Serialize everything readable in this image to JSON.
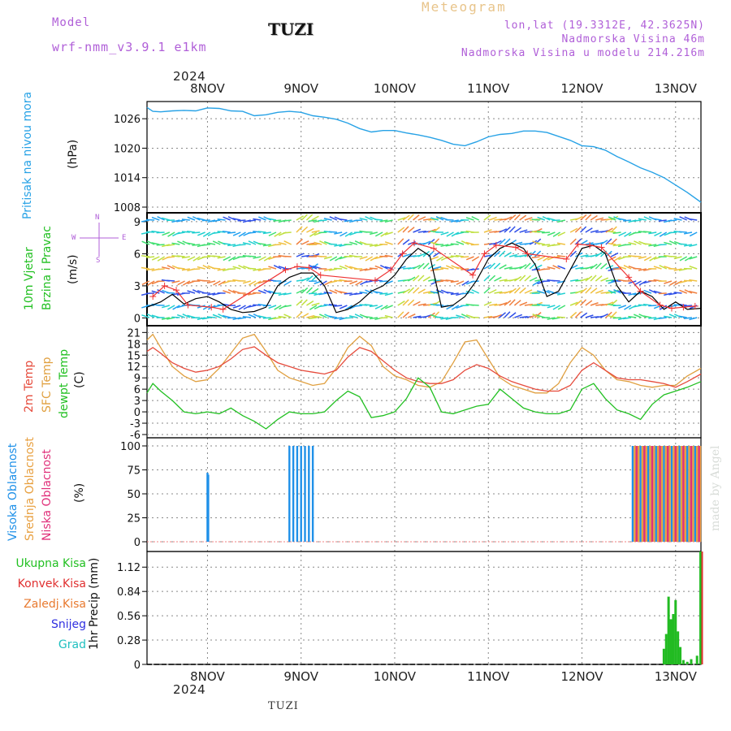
{
  "header": {
    "model_label": "Model",
    "model_name": "wrf-nmm_v3.9.1 e1km",
    "meteogram_label": "Meteogram",
    "location": "TUZI",
    "coords": "lon,lat (19.3312E, 42.3625N)",
    "altitude": "Nadmorska Visina 46m",
    "model_altitude": "Nadmorska Visina u modelu 214.216m"
  },
  "footer": {
    "location": "TUZI",
    "credit": "made by Angel"
  },
  "colors": {
    "pressure": "#27a2e6",
    "wind_speed": "#000000",
    "wind_gust": "#ee3333",
    "temp_2m": "#e64b3c",
    "temp_sfc": "#e0a040",
    "dewpt": "#22c022",
    "cloud_high": "#1e90e8",
    "cloud_mid": "#e8a040",
    "cloud_low": "#e0307a",
    "precip_total": "#22bb22",
    "precip_conv": "#e03030",
    "grid": "#999999"
  },
  "time_axis": {
    "year": "2024",
    "days": [
      "8NOV",
      "9NOV",
      "10NOV",
      "11NOV",
      "12NOV",
      "13NOV"
    ],
    "start_hour_offset": -15.5,
    "end_hour": 126.5
  },
  "chart_data": [
    {
      "type": "line",
      "panel": "pressure",
      "ylabel_main": "Pritisak na nivou mora",
      "unit": "(hPa)",
      "yticks": [
        1008,
        1014,
        1020,
        1026
      ],
      "ylim": [
        1008,
        1029.5
      ],
      "series": [
        {
          "name": "pressure",
          "x": [
            -15.5,
            -14,
            -12,
            -9,
            -6,
            -3,
            0,
            3,
            6,
            9,
            12,
            15,
            18,
            21,
            24,
            27,
            30,
            33,
            36,
            39,
            42,
            45,
            48,
            51,
            54,
            57,
            60,
            63,
            66,
            69,
            72,
            75,
            78,
            81,
            84,
            87,
            90,
            93,
            96,
            99,
            102,
            105,
            108,
            111,
            114,
            117,
            120,
            123,
            126.5
          ],
          "values": [
            1028.3,
            1027.5,
            1027.4,
            1027.6,
            1027.7,
            1027.6,
            1028.2,
            1028.1,
            1027.6,
            1027.5,
            1026.6,
            1026.8,
            1027.3,
            1027.5,
            1027.3,
            1026.6,
            1026.3,
            1025.9,
            1025.1,
            1024.0,
            1023.3,
            1023.6,
            1023.6,
            1023.1,
            1022.7,
            1022.2,
            1021.6,
            1020.8,
            1020.5,
            1021.3,
            1022.3,
            1022.8,
            1023.0,
            1023.5,
            1023.5,
            1023.2,
            1022.4,
            1021.6,
            1020.5,
            1020.3,
            1019.6,
            1018.3,
            1017.2,
            1016.0,
            1015.1,
            1014.0,
            1012.5,
            1011.0,
            1009.0
          ]
        }
      ]
    },
    {
      "type": "line",
      "panel": "wind",
      "ylabel_main": "10m Vjetar",
      "ylabel_sub": "Brzina i Pravac",
      "unit": "(m/s)",
      "compass": {
        "n": "N",
        "s": "S",
        "w": "W",
        "e": "E"
      },
      "yticks": [
        0,
        3,
        6,
        9
      ],
      "ylim": [
        -0.5,
        9.6
      ],
      "series": [
        {
          "name": "speed",
          "x": [
            -15.5,
            -12,
            -9,
            -6,
            -3,
            0,
            3,
            6,
            9,
            12,
            15,
            18,
            21,
            24,
            27,
            30,
            33,
            36,
            39,
            42,
            45,
            48,
            51,
            54,
            57,
            60,
            63,
            66,
            69,
            72,
            75,
            78,
            81,
            84,
            87,
            90,
            93,
            96,
            99,
            102,
            105,
            108,
            111,
            114,
            117,
            120,
            123,
            126.5
          ],
          "values": [
            1.0,
            1.5,
            2.2,
            1.3,
            1.8,
            2.0,
            1.5,
            0.8,
            0.5,
            0.6,
            1.0,
            3.0,
            3.8,
            4.2,
            4.2,
            3.0,
            0.5,
            0.8,
            1.5,
            2.5,
            3.0,
            4.0,
            5.5,
            6.5,
            5.8,
            1.0,
            1.2,
            2.0,
            3.5,
            5.5,
            6.5,
            7.0,
            6.5,
            5.0,
            2.0,
            2.5,
            4.5,
            6.5,
            6.8,
            6.0,
            3.0,
            1.5,
            2.5,
            2.0,
            0.8,
            1.5,
            0.8,
            0.9
          ]
        },
        {
          "name": "gust",
          "x": [
            -14,
            -11,
            -8,
            -5,
            1,
            4,
            20,
            23,
            26,
            29,
            43,
            47,
            50,
            53,
            58,
            68,
            71,
            74,
            79,
            82,
            92,
            95,
            98,
            101,
            108,
            111,
            116,
            119,
            122,
            125
          ],
          "values": [
            2.0,
            3.0,
            2.6,
            1.2,
            1.0,
            0.8,
            4.5,
            4.8,
            4.7,
            4.0,
            3.5,
            4.5,
            6.0,
            7.0,
            6.5,
            4.0,
            6.0,
            6.8,
            6.6,
            6.0,
            5.5,
            6.9,
            6.8,
            6.6,
            3.8,
            2.5,
            1.2,
            0.9,
            1.0,
            1.1
          ]
        }
      ]
    },
    {
      "type": "line",
      "panel": "temperature",
      "ylabel_main": "2m Temp",
      "ylabel_sfc": "SFC Temp",
      "ylabel_dew": "dewpt Temp",
      "unit": "(C)",
      "yticks": [
        -6,
        -3,
        0,
        3,
        6,
        9,
        12,
        15,
        18,
        21
      ],
      "ylim": [
        -6,
        21.5
      ],
      "series": [
        {
          "name": "2m",
          "x": [
            -15.5,
            -14,
            -12,
            -9,
            -6,
            -3,
            0,
            3,
            6,
            9,
            12,
            15,
            18,
            21,
            24,
            27,
            30,
            33,
            36,
            39,
            42,
            45,
            48,
            51,
            54,
            57,
            60,
            63,
            66,
            69,
            72,
            75,
            78,
            81,
            84,
            87,
            90,
            93,
            96,
            99,
            102,
            105,
            108,
            111,
            114,
            117,
            120,
            123,
            126.5
          ],
          "values": [
            16.0,
            17.0,
            15.5,
            13.0,
            11.5,
            10.5,
            11.0,
            12.0,
            14.0,
            16.5,
            17.2,
            15.0,
            13.0,
            12.0,
            11.0,
            10.5,
            10.0,
            11.0,
            14.5,
            17.0,
            16.0,
            13.5,
            11.0,
            9.0,
            8.0,
            7.5,
            7.5,
            8.5,
            11.0,
            12.5,
            11.5,
            9.5,
            8.0,
            7.0,
            6.0,
            5.5,
            5.5,
            7.0,
            11.0,
            13.0,
            11.0,
            9.0,
            8.5,
            8.5,
            8.0,
            7.5,
            6.5,
            8.0,
            10.0
          ]
        },
        {
          "name": "sfc",
          "x": [
            -15.5,
            -14,
            -12,
            -9,
            -6,
            -3,
            0,
            3,
            6,
            9,
            12,
            15,
            18,
            21,
            24,
            27,
            30,
            33,
            36,
            39,
            42,
            45,
            48,
            51,
            54,
            57,
            60,
            63,
            66,
            69,
            72,
            75,
            78,
            81,
            84,
            87,
            90,
            93,
            96,
            99,
            102,
            105,
            108,
            111,
            114,
            117,
            120,
            123,
            126.5
          ],
          "values": [
            19.0,
            20.5,
            17.0,
            12.0,
            9.5,
            8.0,
            8.5,
            11.5,
            15.5,
            19.5,
            20.5,
            16.0,
            11.0,
            9.0,
            8.0,
            7.0,
            7.5,
            11.5,
            17.0,
            20.0,
            17.5,
            12.0,
            9.5,
            8.5,
            7.0,
            6.5,
            8.0,
            13.0,
            18.5,
            19.0,
            14.0,
            9.0,
            7.0,
            6.0,
            5.0,
            5.0,
            7.5,
            13.0,
            17.0,
            15.0,
            11.0,
            8.5,
            8.0,
            7.0,
            6.5,
            7.0,
            7.0,
            9.5,
            11.5
          ]
        },
        {
          "name": "dewpt",
          "x": [
            -15.5,
            -14,
            -12,
            -9,
            -6,
            -3,
            0,
            3,
            6,
            9,
            12,
            15,
            18,
            21,
            24,
            27,
            30,
            33,
            36,
            39,
            42,
            45,
            48,
            51,
            54,
            57,
            60,
            63,
            66,
            69,
            72,
            75,
            78,
            81,
            84,
            87,
            90,
            93,
            96,
            99,
            102,
            105,
            108,
            111,
            114,
            117,
            120,
            123,
            126.5
          ],
          "values": [
            5.0,
            7.5,
            5.5,
            3.0,
            0.0,
            -0.5,
            0.0,
            -0.5,
            1.0,
            -1.0,
            -2.5,
            -4.5,
            -2.0,
            0.0,
            -0.5,
            -0.5,
            0.0,
            3.0,
            5.5,
            4.0,
            -1.5,
            -1.0,
            0.0,
            3.5,
            9.0,
            6.5,
            0.0,
            -0.5,
            0.5,
            1.5,
            2.0,
            6.0,
            3.5,
            1.0,
            0.0,
            -0.5,
            -0.5,
            0.5,
            6.0,
            7.5,
            3.5,
            0.5,
            -0.5,
            -2.0,
            2.0,
            4.5,
            5.5,
            6.5,
            8.0
          ]
        }
      ]
    },
    {
      "type": "bar",
      "panel": "clouds",
      "ylabel_high": "Visoka Oblacnost",
      "ylabel_mid": "Srednja Oblacnost",
      "ylabel_low": "Niska Oblacnost",
      "unit": "(%)",
      "yticks": [
        0,
        25,
        50,
        75,
        100
      ],
      "ylim": [
        0,
        100
      ],
      "series": [
        {
          "name": "high",
          "x": [
            0,
            0.2,
            21,
            22,
            23,
            24,
            25,
            26,
            27,
            109,
            110,
            111,
            112,
            113,
            114,
            115,
            116,
            117,
            118,
            119,
            120,
            121,
            122,
            123,
            124,
            125,
            126
          ],
          "values": [
            72,
            70,
            100,
            100,
            100,
            100,
            100,
            100,
            100,
            100,
            100,
            100,
            100,
            100,
            100,
            100,
            100,
            100,
            100,
            100,
            100,
            100,
            100,
            100,
            100,
            100,
            100
          ]
        },
        {
          "name": "mid",
          "x": [
            109.5,
            110.5,
            111.5,
            112.5,
            113.5,
            114.5,
            115.5,
            116.5,
            117.5,
            118.5,
            119.5,
            120.5,
            121.5,
            122.5,
            123.5,
            124.5,
            125.5,
            126.3
          ],
          "values": [
            100,
            100,
            100,
            100,
            100,
            100,
            100,
            100,
            100,
            100,
            100,
            100,
            100,
            100,
            100,
            100,
            100,
            100
          ]
        },
        {
          "name": "low",
          "x": [
            110,
            112,
            114,
            116,
            118,
            120,
            122,
            124,
            126
          ],
          "values": [
            100,
            100,
            100,
            100,
            100,
            100,
            100,
            100,
            100
          ]
        }
      ]
    },
    {
      "type": "bar",
      "panel": "precip",
      "legend": [
        "Ukupna Kisa",
        "Konvek.Kisa",
        "Zaledj.Kisa",
        "Snijeg",
        "Grad"
      ],
      "ylabel_main": "1hr Precip (mm)",
      "yticks": [
        0,
        0.28,
        0.56,
        0.84,
        1.12
      ],
      "ylim": [
        0,
        1.3
      ],
      "series": [
        {
          "name": "total",
          "x": [
            117,
            117.6,
            118.2,
            118.8,
            119.4,
            120.0,
            120.6,
            121.2,
            122.0,
            123.0,
            124.0,
            125.5,
            126.4
          ],
          "values": [
            0.18,
            0.35,
            0.78,
            0.52,
            0.58,
            0.74,
            0.38,
            0.2,
            0.05,
            0.03,
            0.06,
            0.1,
            1.3
          ]
        },
        {
          "name": "convective",
          "x": [
            126.4
          ],
          "values": [
            1.3
          ]
        }
      ]
    }
  ]
}
